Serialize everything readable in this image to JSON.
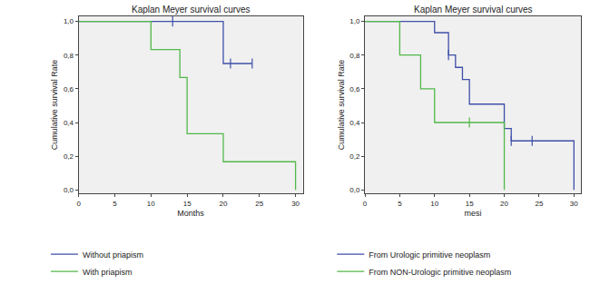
{
  "chart_data": [
    {
      "type": "line",
      "title": "Kaplan Meyer survival curves",
      "x_label": "Months",
      "y_label": "Cumulative survival Rate",
      "line_style": "step",
      "marker": "tick",
      "legend": "bottom",
      "grid": false,
      "xlim": [
        0,
        31
      ],
      "xticks": [
        0,
        5,
        10,
        15,
        20,
        25,
        30
      ],
      "ylim": [
        -0.02,
        1.03
      ],
      "yticks": [
        {
          "value": 0,
          "label": "0,0"
        },
        {
          "value": 0.2,
          "label": "0,2"
        },
        {
          "value": 0.4,
          "label": "0,4"
        },
        {
          "value": 0.6,
          "label": "0,6"
        },
        {
          "value": 0.8,
          "label": "0,8"
        },
        {
          "value": 1,
          "label": "1,0"
        }
      ],
      "series": [
        {
          "name": "Without priapism",
          "color": "#3f4fa8",
          "x": [
            0,
            20,
            24
          ],
          "values": [
            1,
            0.75,
            0.75
          ],
          "censored_x": [
            13,
            21,
            24
          ],
          "censored_values": [
            1,
            0.75,
            0.75
          ]
        },
        {
          "name": "With priapism",
          "color": "#52b849",
          "x": [
            0,
            10,
            14,
            15,
            20,
            30
          ],
          "values": [
            1,
            0.833,
            0.667,
            0.333,
            0.167,
            0
          ],
          "censored_x": [],
          "censored_values": []
        }
      ]
    },
    {
      "type": "line",
      "title": "Kaplan Meyer survival curves",
      "x_label": "mesi",
      "y_label": "Cumulative survival Rate",
      "line_style": "step",
      "marker": "tick",
      "legend": "bottom",
      "grid": false,
      "xlim": [
        0,
        31
      ],
      "xticks": [
        0,
        5,
        10,
        15,
        20,
        25,
        30
      ],
      "ylim": [
        -0.02,
        1.03
      ],
      "yticks": [
        {
          "value": 0,
          "label": "0,0"
        },
        {
          "value": 0.2,
          "label": "0,2"
        },
        {
          "value": 0.4,
          "label": "0,4"
        },
        {
          "value": 0.6,
          "label": "0,6"
        },
        {
          "value": 0.8,
          "label": "0,8"
        },
        {
          "value": 1,
          "label": "1,0"
        }
      ],
      "series": [
        {
          "name": "From Urologic primitive neoplasm",
          "color": "#3f4fa8",
          "x": [
            0,
            10,
            12,
            13,
            14,
            15,
            20,
            21,
            30
          ],
          "values": [
            1,
            0.933,
            0.8,
            0.727,
            0.655,
            0.509,
            0.364,
            0.291,
            0
          ],
          "censored_x": [
            12,
            21,
            24
          ],
          "censored_values": [
            0.8,
            0.291,
            0.291
          ]
        },
        {
          "name": "From NON-Urologic primitive neoplasm",
          "color": "#52b849",
          "x": [
            0,
            5,
            8,
            10,
            20
          ],
          "values": [
            1,
            0.8,
            0.6,
            0.4,
            0
          ],
          "censored_x": [
            15
          ],
          "censored_values": [
            0.4
          ]
        }
      ]
    }
  ]
}
